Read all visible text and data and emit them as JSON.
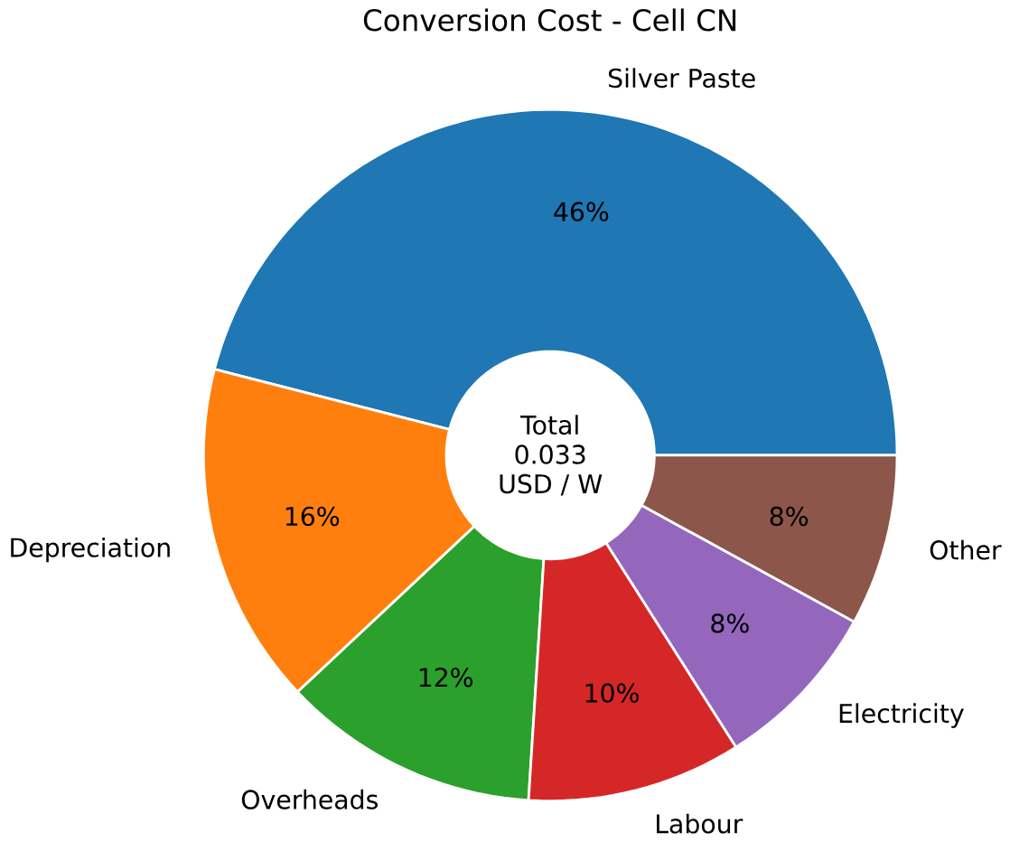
{
  "chart_data": {
    "type": "donut",
    "title": "Conversion Cost - Cell CN",
    "categories": [
      "Silver Paste",
      "Depreciation",
      "Overheads",
      "Labour",
      "Electricity",
      "Other"
    ],
    "values": [
      46,
      16,
      12,
      10,
      8,
      8
    ],
    "colors": [
      "#1f77b4",
      "#ff7f0e",
      "#2ca02c",
      "#d62728",
      "#9467bd",
      "#8c564b"
    ],
    "value_labels": [
      "46%",
      "16%",
      "12%",
      "10%",
      "8%",
      "8%"
    ],
    "annotations": [
      "Total",
      "0.033",
      "USD / W"
    ]
  }
}
